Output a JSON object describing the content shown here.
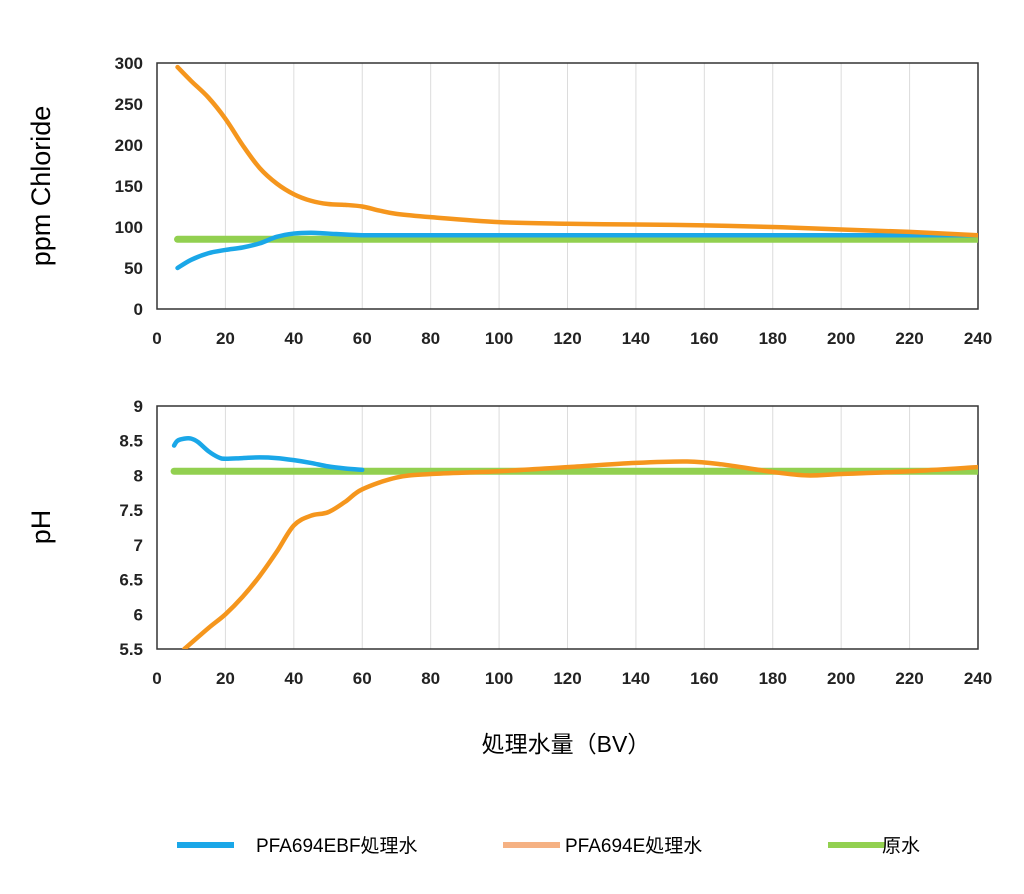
{
  "figure": {
    "xlabel": "処理水量（BV）",
    "legend": [
      {
        "name": "PFA694EBF処理水",
        "color": "#1aa7e8"
      },
      {
        "name": "PFA694E処理水",
        "color": "#f5b183"
      },
      {
        "name": "原水",
        "color": "#92d050"
      }
    ]
  },
  "chart_data": [
    {
      "type": "line",
      "ylabel": "ppm Chloride",
      "xlim": [
        0,
        240
      ],
      "ylim": [
        0,
        300
      ],
      "xticks": [
        "0",
        "20",
        "40",
        "60",
        "80",
        "100",
        "120",
        "140",
        "160",
        "180",
        "200",
        "220",
        "240"
      ],
      "yticks": [
        "0",
        "50",
        "100",
        "150",
        "200",
        "250",
        "300"
      ],
      "grid": "vertical",
      "series": [
        {
          "name": "PFA694EBF処理水",
          "color": "#1aa7e8",
          "x": [
            6,
            10,
            15,
            20,
            25,
            30,
            35,
            40,
            45,
            50,
            60,
            80,
            100,
            120,
            140,
            160,
            180,
            200,
            220,
            240
          ],
          "y": [
            50,
            60,
            68,
            72,
            75,
            80,
            88,
            92,
            93,
            92,
            90,
            90,
            90,
            90,
            90,
            90,
            90,
            90,
            90,
            90
          ]
        },
        {
          "name": "PFA694E処理水",
          "color": "#f5961d",
          "x": [
            6,
            10,
            15,
            20,
            25,
            30,
            35,
            40,
            45,
            50,
            55,
            60,
            65,
            70,
            80,
            100,
            120,
            140,
            160,
            180,
            200,
            220,
            240
          ],
          "y": [
            295,
            278,
            258,
            232,
            200,
            172,
            153,
            140,
            132,
            128,
            127,
            125,
            120,
            116,
            112,
            106,
            104,
            103,
            102,
            100,
            97,
            94,
            90
          ]
        },
        {
          "name": "原水",
          "color": "#92d050",
          "x": [
            6,
            240
          ],
          "y": [
            85,
            85
          ]
        }
      ]
    },
    {
      "type": "line",
      "ylabel": "pH",
      "xlim": [
        0,
        240
      ],
      "ylim": [
        5.5,
        9
      ],
      "xticks": [
        "0",
        "20",
        "40",
        "60",
        "80",
        "100",
        "120",
        "140",
        "160",
        "180",
        "200",
        "220",
        "240"
      ],
      "yticks": [
        "5.5",
        "6",
        "6.5",
        "7",
        "7.5",
        "8",
        "8.5",
        "9"
      ],
      "grid": "vertical",
      "series": [
        {
          "name": "PFA694EBF処理水",
          "color": "#1aa7e8",
          "x": [
            5,
            6,
            8,
            10,
            12,
            15,
            18,
            20,
            25,
            30,
            35,
            40,
            45,
            50,
            55,
            60
          ],
          "y": [
            8.43,
            8.5,
            8.53,
            8.53,
            8.48,
            8.35,
            8.26,
            8.24,
            8.25,
            8.26,
            8.25,
            8.22,
            8.18,
            8.13,
            8.1,
            8.08
          ]
        },
        {
          "name": "PFA694E処理水",
          "color": "#f5961d",
          "x": [
            8,
            15,
            20,
            25,
            30,
            35,
            40,
            45,
            50,
            55,
            60,
            70,
            80,
            100,
            120,
            140,
            155,
            165,
            180,
            190,
            200,
            220,
            240
          ],
          "y": [
            5.5,
            5.8,
            6.0,
            6.25,
            6.55,
            6.9,
            7.28,
            7.42,
            7.47,
            7.62,
            7.8,
            7.97,
            8.02,
            8.06,
            8.12,
            8.18,
            8.2,
            8.16,
            8.05,
            8.0,
            8.02,
            8.06,
            8.12
          ]
        },
        {
          "name": "原水",
          "color": "#92d050",
          "x": [
            5,
            240
          ],
          "y": [
            8.06,
            8.06
          ]
        }
      ]
    }
  ]
}
